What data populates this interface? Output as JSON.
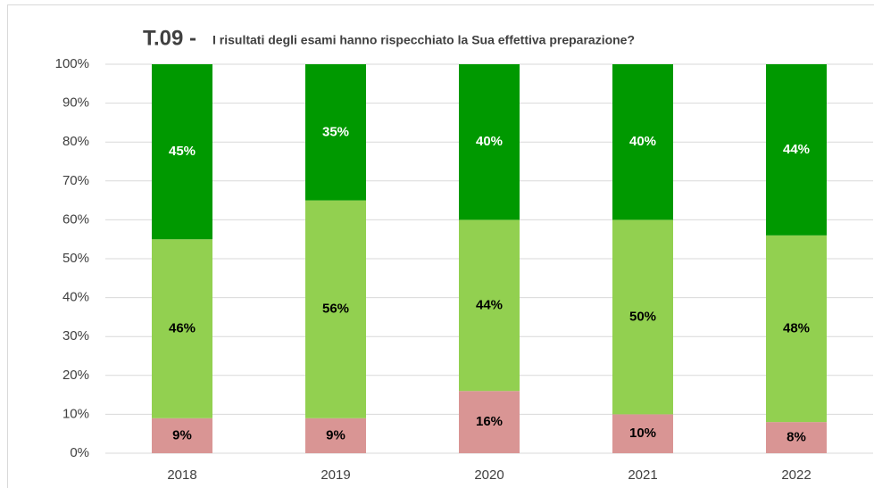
{
  "chart_data": {
    "type": "stacked_bar",
    "title": "T.09 -",
    "subtitle": "I risultati degli esami hanno rispecchiato la Sua effettiva preparazione?",
    "categories": [
      "2018",
      "2019",
      "2020",
      "2021",
      "2022"
    ],
    "series": [
      {
        "color": "#d99594",
        "label_color": "#000000",
        "values": [
          9,
          9,
          16,
          10,
          8
        ],
        "value_labels": [
          "9%",
          "9%",
          "16%",
          "10%",
          "8%"
        ]
      },
      {
        "color": "#92d050",
        "label_color": "#000000",
        "values": [
          46,
          56,
          44,
          50,
          48
        ],
        "value_labels": [
          "46%",
          "56%",
          "44%",
          "50%",
          "48%"
        ]
      },
      {
        "color": "#009900",
        "label_color": "#ffffff",
        "values": [
          45,
          35,
          40,
          40,
          44
        ],
        "value_labels": [
          "45%",
          "35%",
          "40%",
          "40%",
          "44%"
        ]
      }
    ],
    "ylim": [
      0,
      100
    ],
    "yticks": [
      {
        "value": 0,
        "label": "0%"
      },
      {
        "value": 10,
        "label": "10%"
      },
      {
        "value": 20,
        "label": "20%"
      },
      {
        "value": 30,
        "label": "30%"
      },
      {
        "value": 40,
        "label": "40%"
      },
      {
        "value": 50,
        "label": "50%"
      },
      {
        "value": 60,
        "label": "60%"
      },
      {
        "value": 70,
        "label": "70%"
      },
      {
        "value": 80,
        "label": "80%"
      },
      {
        "value": 90,
        "label": "90%"
      },
      {
        "value": 100,
        "label": "100%"
      }
    ],
    "grid": true
  }
}
